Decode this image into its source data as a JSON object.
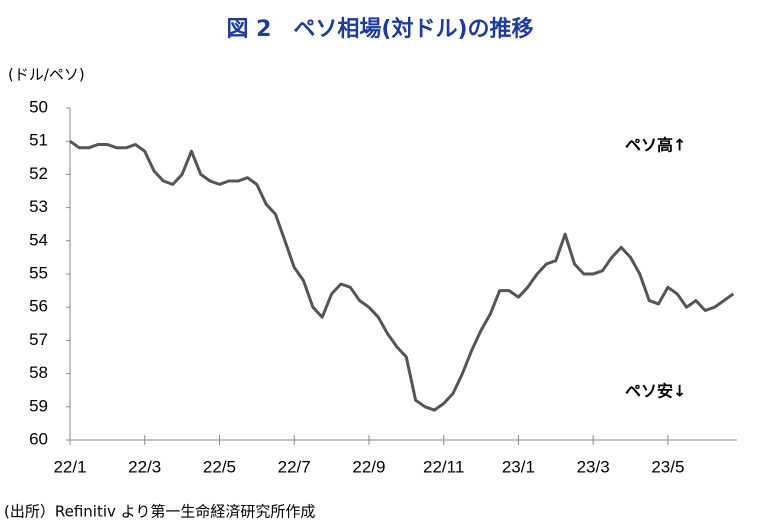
{
  "chart_data": {
    "type": "line",
    "title": "図 2　ペソ相場(対ドル)の推移",
    "y_label": "(ドル/ペソ)",
    "annotations": [
      "ペソ高↑",
      "ペソ安↓"
    ],
    "source": "(出所）Refinitiv より第一生命経済研究所作成",
    "y_inverted": true,
    "x": [
      0,
      0.25,
      0.5,
      0.75,
      1,
      1.25,
      1.5,
      1.75,
      2,
      2.25,
      2.5,
      2.75,
      3,
      3.25,
      3.5,
      3.75,
      4,
      4.25,
      4.5,
      4.75,
      5,
      5.25,
      5.5,
      5.75,
      6,
      6.25,
      6.5,
      6.75,
      7,
      7.25,
      7.5,
      7.75,
      8,
      8.25,
      8.5,
      8.75,
      9,
      9.25,
      9.5,
      9.75,
      10,
      10.25,
      10.5,
      10.75,
      11,
      11.25,
      11.5,
      11.75,
      12,
      12.25,
      12.5,
      12.75,
      13,
      13.25,
      13.5,
      13.75,
      14,
      14.25,
      14.5,
      14.75,
      15,
      15.25,
      15.5,
      15.75,
      16,
      16.25,
      16.5,
      16.75,
      17,
      17.25,
      17.5,
      17.75
    ],
    "series": [
      {
        "name": "ペソ相場",
        "color": "#555555",
        "values": [
          51.0,
          51.2,
          51.2,
          51.1,
          51.1,
          51.2,
          51.2,
          51.1,
          51.3,
          51.9,
          52.2,
          52.3,
          52.0,
          51.3,
          52.0,
          52.2,
          52.3,
          52.2,
          52.2,
          52.1,
          52.3,
          52.9,
          53.2,
          54.0,
          54.8,
          55.2,
          56.0,
          56.3,
          55.6,
          55.3,
          55.4,
          55.8,
          56.0,
          56.3,
          56.8,
          57.2,
          57.5,
          58.8,
          59.0,
          59.1,
          58.9,
          58.6,
          58.0,
          57.3,
          56.7,
          56.2,
          55.5,
          55.5,
          55.7,
          55.4,
          55.0,
          54.7,
          54.6,
          53.8,
          54.7,
          55.0,
          55.0,
          54.9,
          54.5,
          54.2,
          54.5,
          55.0,
          55.8,
          55.9,
          55.4,
          55.6,
          56.0,
          55.8,
          56.1,
          56.0,
          55.8,
          55.6
        ]
      }
    ],
    "xlim": [
      0,
      17.85
    ],
    "xticks": [
      {
        "value": 0,
        "label": "22/1"
      },
      {
        "value": 2,
        "label": "22/3"
      },
      {
        "value": 4,
        "label": "22/5"
      },
      {
        "value": 6,
        "label": "22/7"
      },
      {
        "value": 8,
        "label": "22/9"
      },
      {
        "value": 10,
        "label": "22/11"
      },
      {
        "value": 12,
        "label": "23/1"
      },
      {
        "value": 14,
        "label": "23/3"
      },
      {
        "value": 16,
        "label": "23/5"
      }
    ],
    "ylim": [
      50,
      60
    ],
    "yticks": [
      50,
      51,
      52,
      53,
      54,
      55,
      56,
      57,
      58,
      59,
      60
    ],
    "grid": false
  }
}
